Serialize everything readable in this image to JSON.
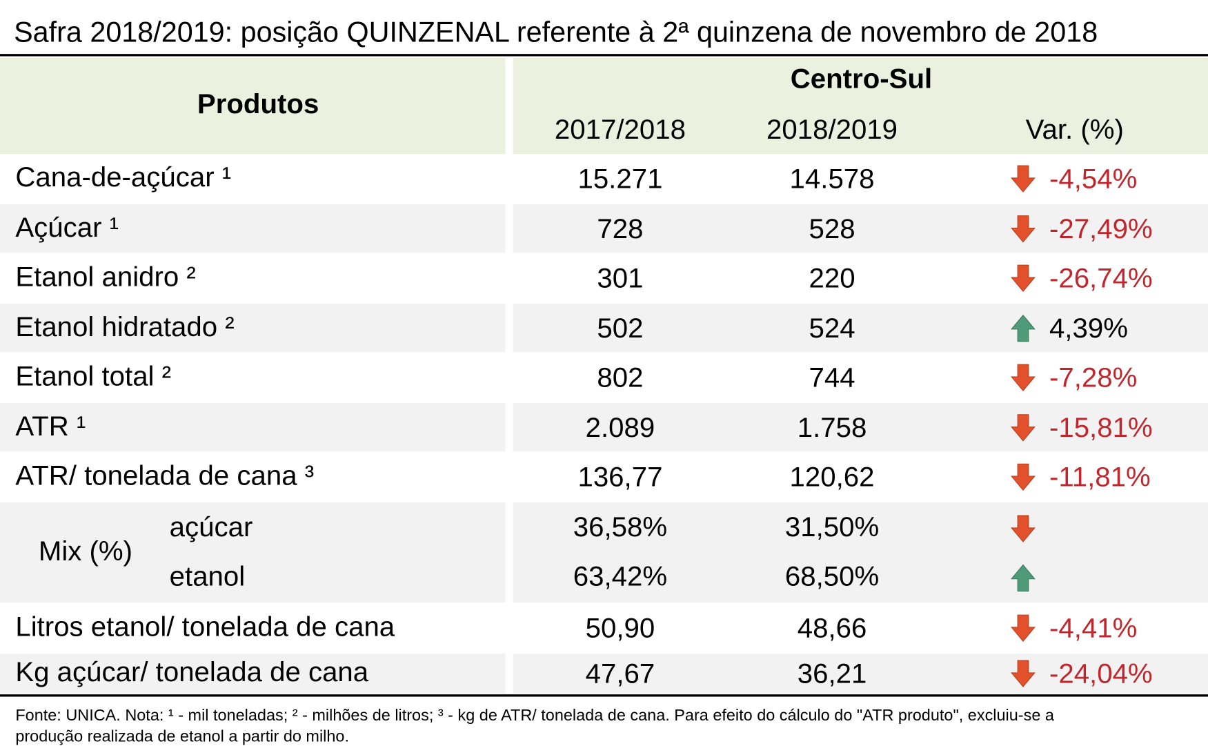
{
  "title": "Safra 2018/2019: posição QUINZENAL referente à 2ª quinzena de novembro de 2018",
  "header": {
    "products": "Produtos",
    "region": "Centro-Sul",
    "columns": [
      "2017/2018",
      "2018/2019",
      "Var. (%)"
    ]
  },
  "rows": [
    {
      "label": "Cana-de-açúcar ¹",
      "values": [
        "15.271",
        "14.578"
      ],
      "change": "-4,54%",
      "trend": "down"
    },
    {
      "label": "Açúcar ¹",
      "values": [
        "728",
        "528"
      ],
      "change": "-27,49%",
      "trend": "down"
    },
    {
      "label": "Etanol anidro ²",
      "values": [
        "301",
        "220"
      ],
      "change": "-26,74%",
      "trend": "down"
    },
    {
      "label": "Etanol hidratado ²",
      "values": [
        "502",
        "524"
      ],
      "change": "4,39%",
      "trend": "up"
    },
    {
      "label": "Etanol total ²",
      "values": [
        "802",
        "744"
      ],
      "change": "-7,28%",
      "trend": "down"
    },
    {
      "label": "ATR ¹",
      "values": [
        "2.089",
        "1.758"
      ],
      "change": "-15,81%",
      "trend": "down"
    },
    {
      "label": "ATR/ tonelada de cana ³",
      "values": [
        "136,77",
        "120,62"
      ],
      "change": "-11,81%",
      "trend": "down"
    },
    {
      "label": "Mix (%)",
      "parts": [
        {
          "label": "açúcar",
          "values": [
            "36,58%",
            "31,50%"
          ],
          "trend": "down"
        },
        {
          "label": "etanol",
          "values": [
            "63,42%",
            "68,50%"
          ],
          "trend": "up"
        }
      ]
    },
    {
      "label": "Litros etanol/ tonelada de cana",
      "values": [
        "50,90",
        "48,66"
      ],
      "change": "-4,41%",
      "trend": "down"
    },
    {
      "label": "Kg açúcar/ tonelada de cana",
      "values": [
        "47,67",
        "36,21"
      ],
      "change": "-24,04%",
      "trend": "down"
    }
  ],
  "footnote": [
    "Fonte: UNICA. Nota: ¹ - mil toneladas; ² - milhões de litros; ³ - kg de ATR/ tonelada de cana. Para efeito do cálculo do \"ATR produto\", excluiu-se a",
    "produção realizada de etanol a partir do milho."
  ]
}
